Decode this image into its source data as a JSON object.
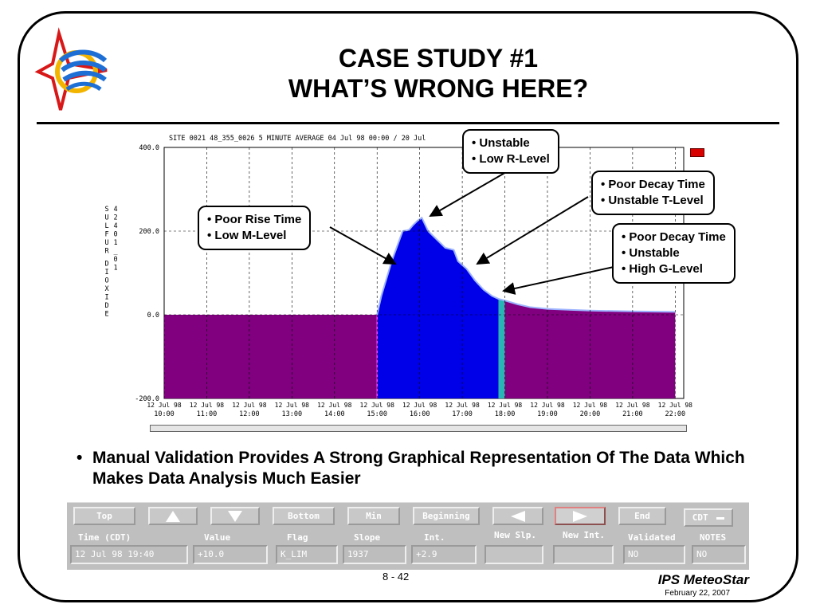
{
  "slide": {
    "title_line1": "CASE STUDY #1",
    "title_line2": "WHAT’S WRONG HERE?",
    "bullet": "Manual Validation Provides A Strong Graphical Representation Of The Data Which Makes Data Analysis Much Easier",
    "bullet_dot": "•",
    "page_number": "8 - 42",
    "brand": "IPS MeteoStar",
    "date": "February 22, 2007"
  },
  "callouts": {
    "c1": [
      "• Unstable",
      "• Low R-Level"
    ],
    "c2": [
      "• Poor Decay Time",
      "• Unstable T-Level"
    ],
    "c3": [
      "• Poor Rise Time",
      "• Low M-Level"
    ],
    "c4": [
      "• Poor Decay Time",
      "• Unstable",
      "• High G-Level"
    ]
  },
  "chart_data": {
    "type": "area",
    "title": "SITE 0021 48_355_0026 5 MINUTE AVERAGE 04 Jul 98 00:00 / 20 Jul",
    "ylabel": "SULFUR DIOXIDE",
    "ylabel_code": "42401_01",
    "ylim": [
      -200,
      400
    ],
    "xlim": [
      10,
      22.2
    ],
    "yticks": [
      400,
      200,
      0,
      -200
    ],
    "ytick_labels": [
      "400.0",
      "200.0",
      "0.0",
      "-200.0"
    ],
    "x_date_labels": [
      "12 Jul 98",
      "12 Jul 98",
      "12 Jul 98",
      "12 Jul 98",
      "12 Jul 98",
      "12 Jul 98",
      "12 Jul 98",
      "12 Jul 98",
      "12 Jul 98",
      "12 Jul 98",
      "12 Jul 98",
      "12 Jul 98",
      "12 Jul 98"
    ],
    "x_time_labels": [
      "10:00",
      "11:00",
      "12:00",
      "13:00",
      "14:00",
      "15:00",
      "16:00",
      "17:00",
      "18:00",
      "19:00",
      "20:00",
      "21:00",
      "22:00"
    ],
    "x_tick_hours": [
      10,
      11,
      12,
      13,
      14,
      15,
      16,
      17,
      18,
      19,
      20,
      21,
      22
    ],
    "grid": true,
    "colors": {
      "baseline": "#800080",
      "flagged": "#0000e8",
      "selected": "#2ab5b5",
      "outline": "#9db3ff"
    },
    "series": [
      {
        "values_x": [
          10,
          15.0,
          15.1,
          15.35,
          15.6,
          15.75,
          15.85,
          15.95,
          16.05,
          16.2,
          16.4,
          16.6,
          16.8,
          16.9,
          17.1,
          17.3,
          17.5,
          17.7,
          17.85,
          18.0,
          18.3,
          18.6,
          19.0,
          19.5,
          20.0,
          21.0,
          22.0
        ],
        "values_y": [
          0,
          0,
          45,
          130,
          200,
          203,
          215,
          225,
          232,
          200,
          180,
          160,
          155,
          128,
          110,
          82,
          60,
          45,
          38,
          34,
          25,
          18,
          14,
          12,
          10,
          8,
          7
        ]
      }
    ],
    "flagged_range": [
      15.0,
      17.85
    ],
    "selected_range": [
      17.85,
      18.0
    ]
  },
  "controls": {
    "buttons": [
      "Top",
      "Bottom",
      "Min",
      "Beginning",
      "End",
      "CDT"
    ],
    "button_light": [
      "New Slp.",
      "New Int."
    ],
    "labels": [
      "Time (CDT)",
      "Value",
      "Flag",
      "Slope",
      "Int.",
      "Validated",
      "NOTES"
    ],
    "fields": [
      "12 Jul 98 19:40",
      "+10.0",
      "K_LIM",
      "1937",
      "+2.9",
      "NO",
      "NO"
    ]
  }
}
